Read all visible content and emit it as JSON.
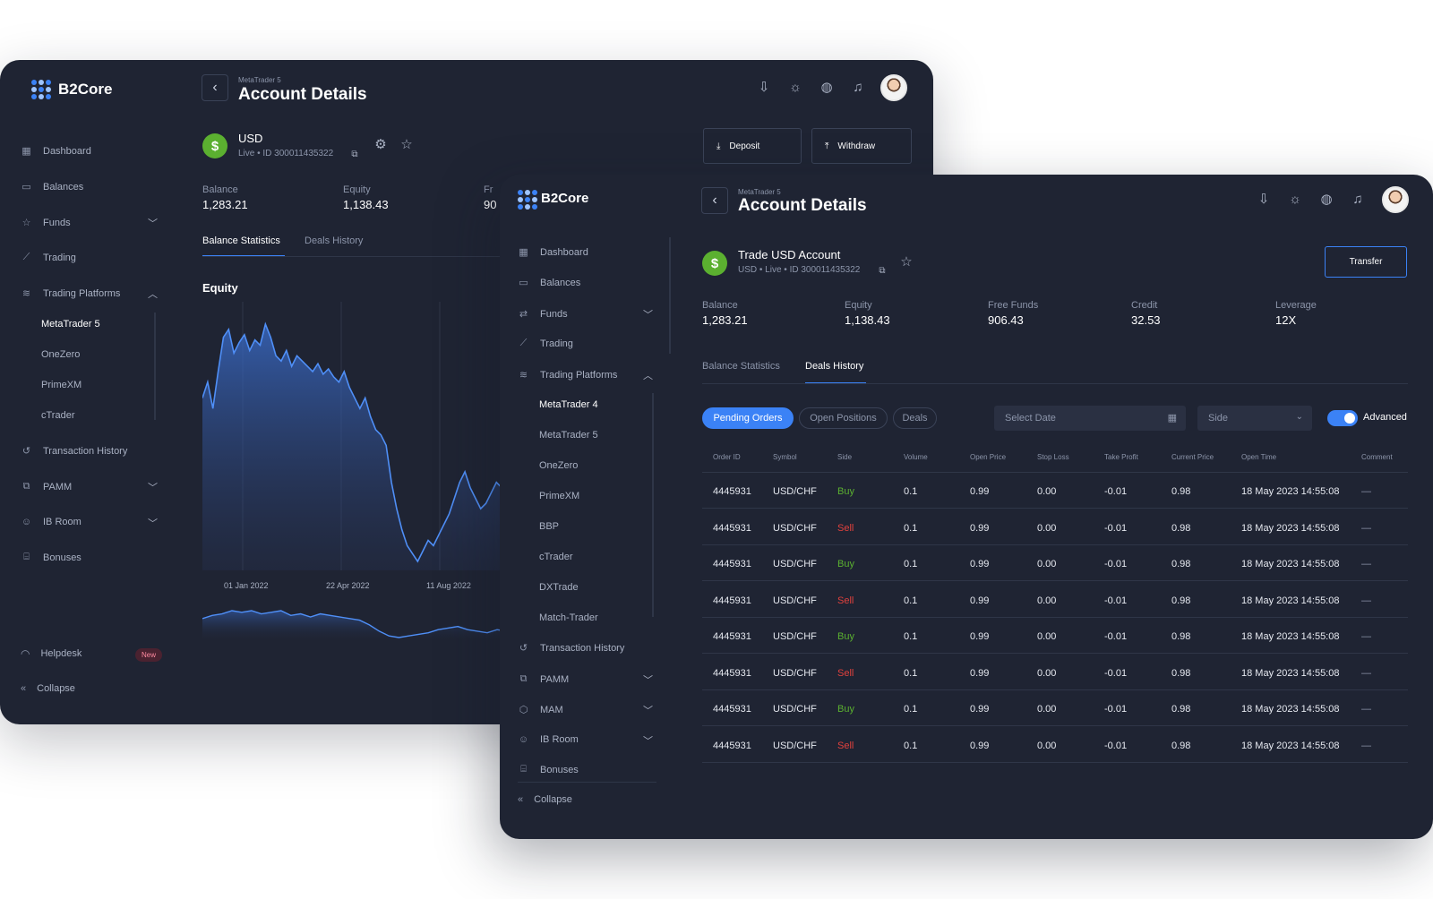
{
  "win1": {
    "logo": "B2Core",
    "header": {
      "platform": "MetaTrader 5",
      "title": "Account Details"
    },
    "sidebar": [
      {
        "label": "Dashboard",
        "icon": "grid-icon"
      },
      {
        "label": "Balances",
        "icon": "wallet-icon"
      },
      {
        "label": "Funds",
        "icon": "star-icon",
        "chevron": "down"
      },
      {
        "label": "Trading",
        "icon": "chart-icon"
      },
      {
        "label": "Trading Platforms",
        "icon": "layers-icon",
        "chevron": "up"
      },
      {
        "label": "Transaction History",
        "icon": "history-icon"
      },
      {
        "label": "PAMM",
        "icon": "copy-icon",
        "chevron": "down"
      },
      {
        "label": "IB Room",
        "icon": "users-icon",
        "chevron": "down"
      },
      {
        "label": "Bonuses",
        "icon": "gift-icon"
      }
    ],
    "sub_items": [
      "MetaTrader 5",
      "OneZero",
      "PrimeXM",
      "cTrader"
    ],
    "helpdesk": "Helpdesk",
    "new_badge": "New",
    "collapse": "Collapse",
    "account": {
      "currency": "USD",
      "meta": "Live • ID 300011435322"
    },
    "deposit": "Deposit",
    "withdraw": "Withdraw",
    "stats": [
      {
        "label": "Balance",
        "value": "1,283.21"
      },
      {
        "label": "Equity",
        "value": "1,138.43"
      },
      {
        "label": "Fr",
        "value": "90"
      }
    ],
    "tabs": [
      "Balance Statistics",
      "Deals History"
    ],
    "chart_title": "Equity",
    "chart_data": {
      "type": "area",
      "title": "Equity",
      "x_tick_labels": [
        "01 Jan 2022",
        "22 Apr 2022",
        "11 Aug 2022"
      ],
      "values": [
        62,
        68,
        58,
        72,
        85,
        88,
        79,
        83,
        86,
        80,
        84,
        82,
        90,
        85,
        78,
        76,
        80,
        74,
        78,
        76,
        74,
        72,
        75,
        71,
        73,
        70,
        68,
        72,
        66,
        62,
        58,
        62,
        55,
        50,
        48,
        44,
        30,
        20,
        12,
        6,
        3,
        0,
        4,
        8,
        6,
        10,
        14,
        18,
        24,
        30,
        34,
        28,
        24,
        20,
        22,
        26,
        30,
        28,
        34
      ]
    },
    "mini_values": [
      60,
      64,
      66,
      70,
      68,
      70,
      66,
      68,
      70,
      64,
      66,
      62,
      66,
      64,
      62,
      60,
      58,
      52,
      44,
      38,
      36,
      38,
      40,
      42,
      46,
      48,
      50,
      46,
      44,
      42,
      46,
      44
    ]
  },
  "win2": {
    "logo": "B2Core",
    "header": {
      "platform": "MetaTrader 5",
      "title": "Account Details"
    },
    "sidebar_top": [
      {
        "label": "Dashboard",
        "icon": "grid-icon"
      },
      {
        "label": "Balances",
        "icon": "wallet-icon"
      },
      {
        "label": "Funds",
        "icon": "transfer-icon",
        "chevron": "down"
      },
      {
        "label": "Trading",
        "icon": "chart-icon"
      },
      {
        "label": "Trading Platforms",
        "icon": "layers-icon",
        "chevron": "up"
      }
    ],
    "sub_items": [
      "MetaTrader 4",
      "MetaTrader 5",
      "OneZero",
      "PrimeXM",
      "BBP",
      "cTrader",
      "DXTrade",
      "Match-Trader"
    ],
    "sidebar_bottom": [
      {
        "label": "Transaction History",
        "icon": "history-icon"
      },
      {
        "label": "PAMM",
        "icon": "copy-icon",
        "chevron": "down"
      },
      {
        "label": "MAM",
        "icon": "cube-icon",
        "chevron": "down"
      },
      {
        "label": "IB Room",
        "icon": "users-icon",
        "chevron": "down"
      },
      {
        "label": "Bonuses",
        "icon": "gift-icon"
      }
    ],
    "collapse": "Collapse",
    "account": {
      "name": "Trade USD Account",
      "meta": "USD • Live • ID 300011435322"
    },
    "transfer": "Transfer",
    "stats": [
      {
        "label": "Balance",
        "value": "1,283.21"
      },
      {
        "label": "Equity",
        "value": "1,138.43"
      },
      {
        "label": "Free Funds",
        "value": "906.43"
      },
      {
        "label": "Credit",
        "value": "32.53"
      },
      {
        "label": "Leverage",
        "value": "12X"
      }
    ],
    "tabs": [
      "Balance Statistics",
      "Deals History"
    ],
    "filters": [
      "Pending Orders",
      "Open Positions",
      "Deals"
    ],
    "select_date_placeholder": "Select Date",
    "side_placeholder": "Side",
    "advanced": "Advanced",
    "columns": [
      "Order ID",
      "Symbol",
      "Side",
      "Volume",
      "Open Price",
      "Stop Loss",
      "Take Profit",
      "Current Price",
      "Open Time",
      "Comment"
    ],
    "rows": [
      [
        "4445931",
        "USD/CHF",
        "Buy",
        "0.1",
        "0.99",
        "0.00",
        "-0.01",
        "0.98",
        "18 May 2023 14:55:08",
        "—"
      ],
      [
        "4445931",
        "USD/CHF",
        "Sell",
        "0.1",
        "0.99",
        "0.00",
        "-0.01",
        "0.98",
        "18 May 2023 14:55:08",
        "—"
      ],
      [
        "4445931",
        "USD/CHF",
        "Buy",
        "0.1",
        "0.99",
        "0.00",
        "-0.01",
        "0.98",
        "18 May 2023 14:55:08",
        "—"
      ],
      [
        "4445931",
        "USD/CHF",
        "Sell",
        "0.1",
        "0.99",
        "0.00",
        "-0.01",
        "0.98",
        "18 May 2023 14:55:08",
        "—"
      ],
      [
        "4445931",
        "USD/CHF",
        "Buy",
        "0.1",
        "0.99",
        "0.00",
        "-0.01",
        "0.98",
        "18 May 2023 14:55:08",
        "—"
      ],
      [
        "4445931",
        "USD/CHF",
        "Sell",
        "0.1",
        "0.99",
        "0.00",
        "-0.01",
        "0.98",
        "18 May 2023 14:55:08",
        "—"
      ],
      [
        "4445931",
        "USD/CHF",
        "Buy",
        "0.1",
        "0.99",
        "0.00",
        "-0.01",
        "0.98",
        "18 May 2023 14:55:08",
        "—"
      ],
      [
        "4445931",
        "USD/CHF",
        "Sell",
        "0.1",
        "0.99",
        "0.00",
        "-0.01",
        "0.98",
        "18 May 2023 14:55:08",
        "—"
      ]
    ]
  },
  "colors": {
    "accent": "#3b82f6",
    "buy": "#5bb030",
    "sell": "#e0413d",
    "bg": "#1f2433"
  }
}
